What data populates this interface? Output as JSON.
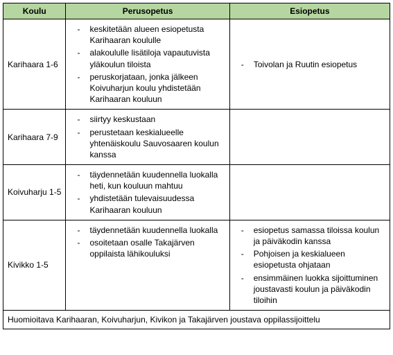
{
  "header_bg": "#b5d6a0",
  "columns": [
    "Koulu",
    "Perusopetus",
    "Esiopetus"
  ],
  "rows": [
    {
      "school": "Karihaara 1-6",
      "perus": [
        "keskitetään alueen esiopetusta Karihaaran koululle",
        "alakoululle lisätiloja vapautuvista yläkoulun tiloista",
        "peruskorjataan, jonka jälkeen Koivuharjun koulu yhdistetään Karihaaran kouluun"
      ],
      "esi": [
        "Toivolan ja Ruutin esiopetus"
      ]
    },
    {
      "school": "Karihaara 7-9",
      "perus": [
        "siirtyy keskustaan",
        "perustetaan keskialueelle yhtenäiskoulu Sauvosaaren koulun kanssa"
      ],
      "esi": []
    },
    {
      "school": "Koivuharju 1-5",
      "perus": [
        "täydennetään kuudennella luokalla heti, kun kouluun mahtuu",
        "yhdistetään tulevaisuudessa Karihaaran kouluun"
      ],
      "esi": []
    },
    {
      "school": "Kivikko 1-5",
      "perus": [
        "täydennetään kuudennella luokalla",
        "osoitetaan osalle Takajärven oppilaista lähikouluksi"
      ],
      "esi": [
        "esiopetus samassa tiloissa koulun ja päiväkodin kanssa",
        "Pohjoisen ja keskialueen esiopetusta ohjataan",
        "ensimmäinen luokka sijoittuminen joustavasti koulun ja päiväkodin tiloihin"
      ]
    }
  ],
  "footer": "Huomioitava Karihaaran, Koivuharjun, Kivikon ja Takajärven joustava oppilassijoittelu"
}
